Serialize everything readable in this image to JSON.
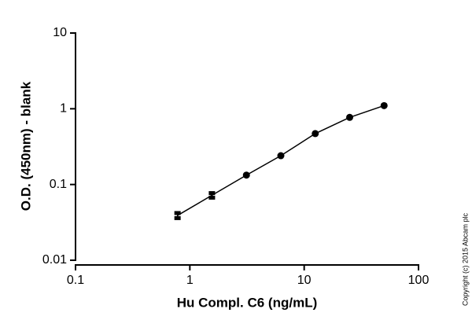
{
  "chart_data": {
    "type": "scatter-line",
    "x_label": "Hu Compl. C6 (ng/mL)",
    "y_label": "O.D. (450nm) - blank",
    "copyright": "Copyright (c) 2015 Abcam plc",
    "log_x": true,
    "log_y": true,
    "xlim": [
      0.1,
      100
    ],
    "xticks": [
      0.1,
      1,
      10,
      100
    ],
    "ylim": [
      0.01,
      10
    ],
    "yticks": [
      0.01,
      0.1,
      1,
      10
    ],
    "series": [
      {
        "color": "#000000",
        "x": [
          0.78,
          1.56,
          3.125,
          6.25,
          12.5,
          25,
          50
        ],
        "values": [
          0.039,
          0.072,
          0.133,
          0.24,
          0.47,
          0.77,
          1.1
        ],
        "errors": [
          0.003,
          0.005,
          0,
          0,
          0,
          0,
          0
        ]
      }
    ]
  }
}
